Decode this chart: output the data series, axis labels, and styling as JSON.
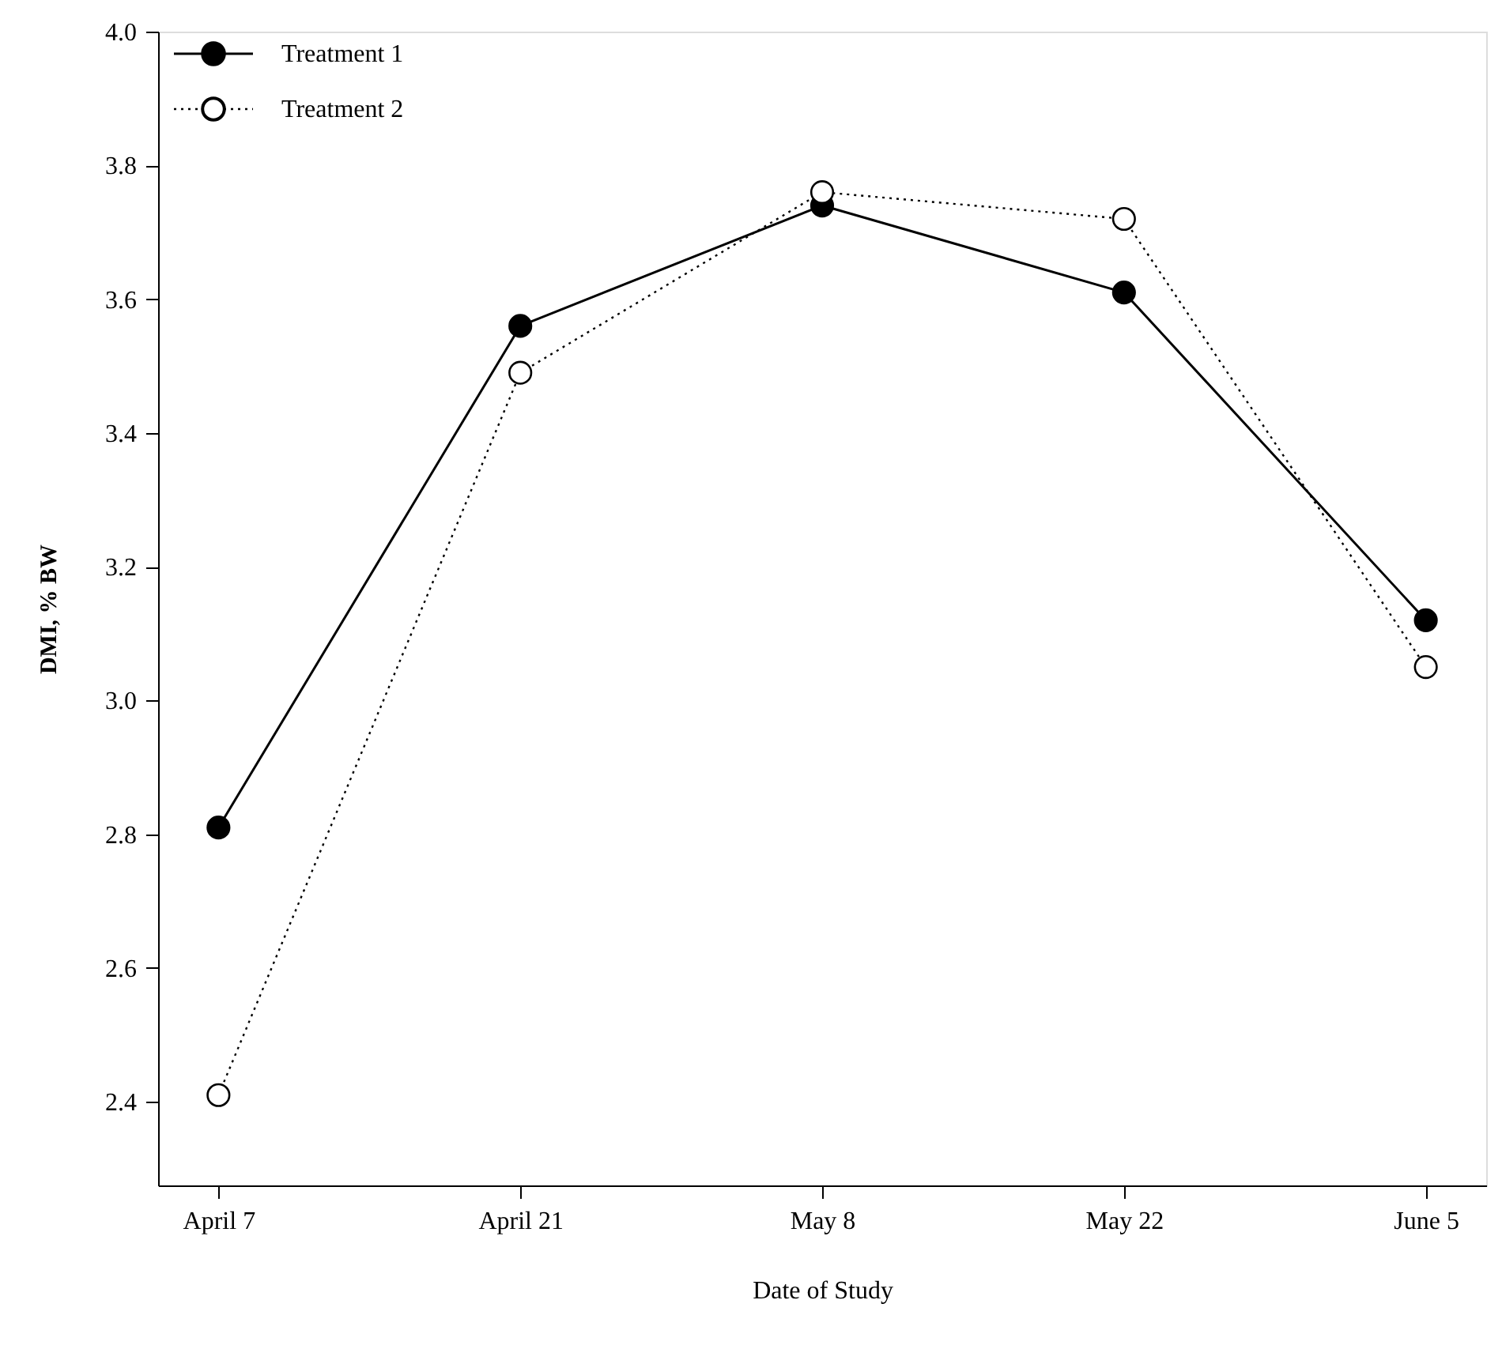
{
  "chart_data": {
    "type": "line",
    "xlabel": "Date of Study",
    "ylabel": "DMI, % BW",
    "categories": [
      "April 7",
      "April 21",
      "May 8",
      "May 22",
      "June 5"
    ],
    "series": [
      {
        "name": "Treatment 1",
        "color": "#000000",
        "values": [
          2.81,
          3.56,
          3.74,
          3.61,
          3.12
        ],
        "line_style": "solid"
      },
      {
        "name": "Treatment 2",
        "color": "#000000",
        "values": [
          2.41,
          3.49,
          3.76,
          3.72,
          3.05
        ],
        "line_style": "dotted"
      }
    ],
    "ylim": [
      2.275,
      4.0
    ],
    "yticks": [
      2.4,
      2.6,
      2.8,
      {
        "value": 3,
        "label": "3.0"
      },
      3.2,
      3.4,
      3.6,
      3.8,
      {
        "value": 4,
        "label": "4.0"
      }
    ],
    "marker": "circle",
    "grid": false,
    "legend": "top left"
  }
}
